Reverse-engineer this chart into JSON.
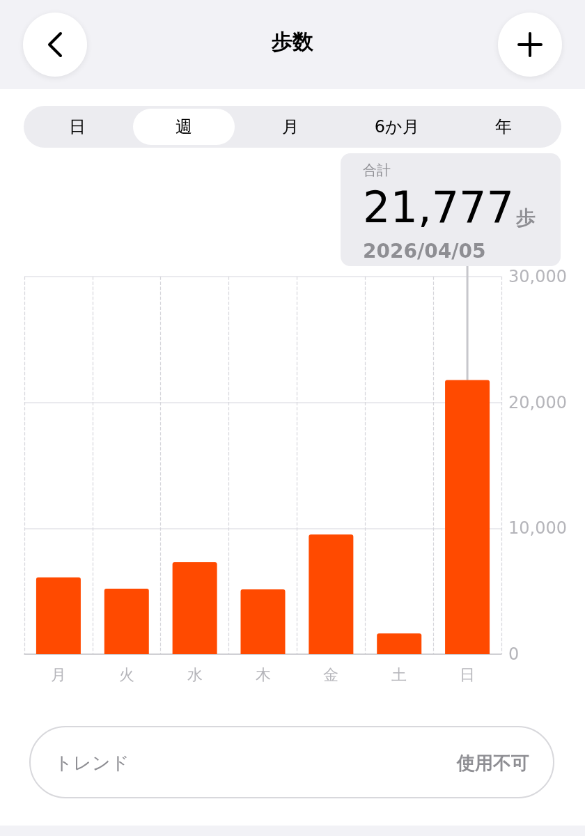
{
  "chart_data": {
    "type": "bar",
    "title": "歩数",
    "categories": [
      "月",
      "火",
      "水",
      "木",
      "金",
      "土",
      "日"
    ],
    "values": [
      6100,
      5200,
      7300,
      5150,
      9500,
      1650,
      21777
    ],
    "color": "#ff4a00",
    "ylim": [
      0,
      30000
    ],
    "yticks": [
      0,
      {
        "value": 10000,
        "label": "10,000"
      },
      {
        "value": 20000,
        "label": "20,000"
      },
      {
        "value": 30000,
        "label": "30,000"
      }
    ],
    "grid": true,
    "value_labels": [
      null,
      null,
      null,
      null,
      null,
      null,
      "21,777"
    ],
    "annotations": [
      "合計",
      "歩",
      {
        "text": "2026/04/05",
        "x": "日",
        "y": 21777
      },
      "日",
      "週",
      "月",
      "6か月",
      "年",
      "トレンド",
      "使用不可"
    ]
  }
}
